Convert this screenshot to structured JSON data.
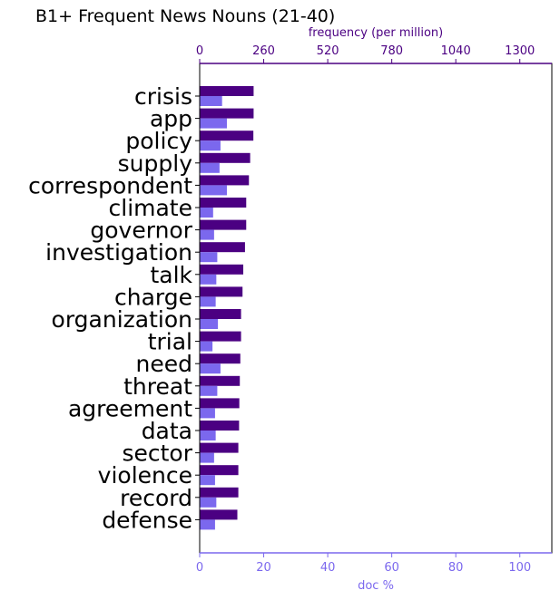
{
  "chart_data": {
    "type": "bar",
    "orientation": "horizontal",
    "title": "B1+ Frequent News Nouns (21-40)",
    "categories": [
      "crisis",
      "app",
      "policy",
      "supply",
      "correspondent",
      "climate",
      "governor",
      "investigation",
      "talk",
      "charge",
      "organization",
      "trial",
      "need",
      "threat",
      "agreement",
      "data",
      "sector",
      "violence",
      "record",
      "defense"
    ],
    "series": [
      {
        "name": "frequency (per million)",
        "axis": "top",
        "color": "#4b0082",
        "values": [
          219,
          219,
          218,
          205,
          200,
          189,
          189,
          184,
          177,
          174,
          168,
          168,
          165,
          163,
          161,
          160,
          157,
          157,
          157,
          153
        ]
      },
      {
        "name": "doc %",
        "axis": "bottom",
        "color": "#7b68ee",
        "values": [
          7.0,
          8.5,
          6.5,
          6.2,
          8.5,
          4.2,
          4.5,
          5.5,
          5.2,
          5.0,
          5.7,
          4.0,
          6.5,
          5.5,
          4.8,
          5.0,
          4.5,
          4.8,
          5.2,
          4.8
        ]
      }
    ],
    "top_axis": {
      "label": "frequency (per million)",
      "ticks": [
        0,
        260,
        520,
        780,
        1040,
        1300
      ],
      "range": [
        0,
        1430
      ],
      "color": "#4b0082"
    },
    "bottom_axis": {
      "label": "doc %",
      "ticks": [
        0,
        20,
        40,
        60,
        80,
        100
      ],
      "range": [
        0,
        110
      ],
      "color": "#7b68ee"
    },
    "grid": false
  }
}
